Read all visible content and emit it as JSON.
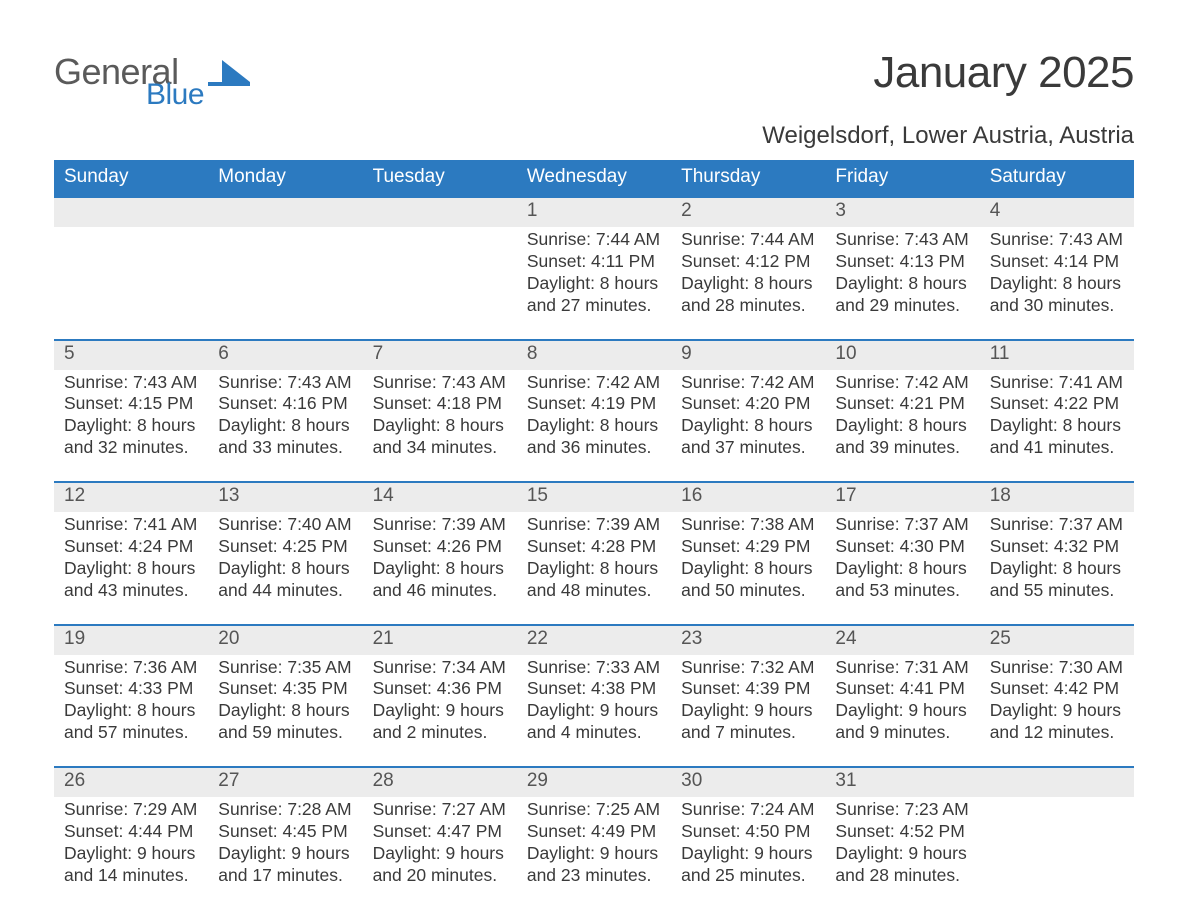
{
  "brand": {
    "line1": "General",
    "line2": "Blue"
  },
  "colors": {
    "header_blue": "#2c7ac0",
    "accent_blue": "#2c7ac0",
    "date_row_bg": "#ececec",
    "text_dark": "#3a3a3a",
    "logo_gray": "#5a5a5a"
  },
  "title": "January 2025",
  "location": "Weigelsdorf, Lower Austria, Austria",
  "weekdays": [
    "Sunday",
    "Monday",
    "Tuesday",
    "Wednesday",
    "Thursday",
    "Friday",
    "Saturday"
  ],
  "weeks": [
    {
      "days": [
        {
          "date": "",
          "sunrise": "",
          "sunset": "",
          "daylight": ""
        },
        {
          "date": "",
          "sunrise": "",
          "sunset": "",
          "daylight": ""
        },
        {
          "date": "",
          "sunrise": "",
          "sunset": "",
          "daylight": ""
        },
        {
          "date": "1",
          "sunrise": "Sunrise: 7:44 AM",
          "sunset": "Sunset: 4:11 PM",
          "daylight": "Daylight: 8 hours and 27 minutes."
        },
        {
          "date": "2",
          "sunrise": "Sunrise: 7:44 AM",
          "sunset": "Sunset: 4:12 PM",
          "daylight": "Daylight: 8 hours and 28 minutes."
        },
        {
          "date": "3",
          "sunrise": "Sunrise: 7:43 AM",
          "sunset": "Sunset: 4:13 PM",
          "daylight": "Daylight: 8 hours and 29 minutes."
        },
        {
          "date": "4",
          "sunrise": "Sunrise: 7:43 AM",
          "sunset": "Sunset: 4:14 PM",
          "daylight": "Daylight: 8 hours and 30 minutes."
        }
      ]
    },
    {
      "days": [
        {
          "date": "5",
          "sunrise": "Sunrise: 7:43 AM",
          "sunset": "Sunset: 4:15 PM",
          "daylight": "Daylight: 8 hours and 32 minutes."
        },
        {
          "date": "6",
          "sunrise": "Sunrise: 7:43 AM",
          "sunset": "Sunset: 4:16 PM",
          "daylight": "Daylight: 8 hours and 33 minutes."
        },
        {
          "date": "7",
          "sunrise": "Sunrise: 7:43 AM",
          "sunset": "Sunset: 4:18 PM",
          "daylight": "Daylight: 8 hours and 34 minutes."
        },
        {
          "date": "8",
          "sunrise": "Sunrise: 7:42 AM",
          "sunset": "Sunset: 4:19 PM",
          "daylight": "Daylight: 8 hours and 36 minutes."
        },
        {
          "date": "9",
          "sunrise": "Sunrise: 7:42 AM",
          "sunset": "Sunset: 4:20 PM",
          "daylight": "Daylight: 8 hours and 37 minutes."
        },
        {
          "date": "10",
          "sunrise": "Sunrise: 7:42 AM",
          "sunset": "Sunset: 4:21 PM",
          "daylight": "Daylight: 8 hours and 39 minutes."
        },
        {
          "date": "11",
          "sunrise": "Sunrise: 7:41 AM",
          "sunset": "Sunset: 4:22 PM",
          "daylight": "Daylight: 8 hours and 41 minutes."
        }
      ]
    },
    {
      "days": [
        {
          "date": "12",
          "sunrise": "Sunrise: 7:41 AM",
          "sunset": "Sunset: 4:24 PM",
          "daylight": "Daylight: 8 hours and 43 minutes."
        },
        {
          "date": "13",
          "sunrise": "Sunrise: 7:40 AM",
          "sunset": "Sunset: 4:25 PM",
          "daylight": "Daylight: 8 hours and 44 minutes."
        },
        {
          "date": "14",
          "sunrise": "Sunrise: 7:39 AM",
          "sunset": "Sunset: 4:26 PM",
          "daylight": "Daylight: 8 hours and 46 minutes."
        },
        {
          "date": "15",
          "sunrise": "Sunrise: 7:39 AM",
          "sunset": "Sunset: 4:28 PM",
          "daylight": "Daylight: 8 hours and 48 minutes."
        },
        {
          "date": "16",
          "sunrise": "Sunrise: 7:38 AM",
          "sunset": "Sunset: 4:29 PM",
          "daylight": "Daylight: 8 hours and 50 minutes."
        },
        {
          "date": "17",
          "sunrise": "Sunrise: 7:37 AM",
          "sunset": "Sunset: 4:30 PM",
          "daylight": "Daylight: 8 hours and 53 minutes."
        },
        {
          "date": "18",
          "sunrise": "Sunrise: 7:37 AM",
          "sunset": "Sunset: 4:32 PM",
          "daylight": "Daylight: 8 hours and 55 minutes."
        }
      ]
    },
    {
      "days": [
        {
          "date": "19",
          "sunrise": "Sunrise: 7:36 AM",
          "sunset": "Sunset: 4:33 PM",
          "daylight": "Daylight: 8 hours and 57 minutes."
        },
        {
          "date": "20",
          "sunrise": "Sunrise: 7:35 AM",
          "sunset": "Sunset: 4:35 PM",
          "daylight": "Daylight: 8 hours and 59 minutes."
        },
        {
          "date": "21",
          "sunrise": "Sunrise: 7:34 AM",
          "sunset": "Sunset: 4:36 PM",
          "daylight": "Daylight: 9 hours and 2 minutes."
        },
        {
          "date": "22",
          "sunrise": "Sunrise: 7:33 AM",
          "sunset": "Sunset: 4:38 PM",
          "daylight": "Daylight: 9 hours and 4 minutes."
        },
        {
          "date": "23",
          "sunrise": "Sunrise: 7:32 AM",
          "sunset": "Sunset: 4:39 PM",
          "daylight": "Daylight: 9 hours and 7 minutes."
        },
        {
          "date": "24",
          "sunrise": "Sunrise: 7:31 AM",
          "sunset": "Sunset: 4:41 PM",
          "daylight": "Daylight: 9 hours and 9 minutes."
        },
        {
          "date": "25",
          "sunrise": "Sunrise: 7:30 AM",
          "sunset": "Sunset: 4:42 PM",
          "daylight": "Daylight: 9 hours and 12 minutes."
        }
      ]
    },
    {
      "days": [
        {
          "date": "26",
          "sunrise": "Sunrise: 7:29 AM",
          "sunset": "Sunset: 4:44 PM",
          "daylight": "Daylight: 9 hours and 14 minutes."
        },
        {
          "date": "27",
          "sunrise": "Sunrise: 7:28 AM",
          "sunset": "Sunset: 4:45 PM",
          "daylight": "Daylight: 9 hours and 17 minutes."
        },
        {
          "date": "28",
          "sunrise": "Sunrise: 7:27 AM",
          "sunset": "Sunset: 4:47 PM",
          "daylight": "Daylight: 9 hours and 20 minutes."
        },
        {
          "date": "29",
          "sunrise": "Sunrise: 7:25 AM",
          "sunset": "Sunset: 4:49 PM",
          "daylight": "Daylight: 9 hours and 23 minutes."
        },
        {
          "date": "30",
          "sunrise": "Sunrise: 7:24 AM",
          "sunset": "Sunset: 4:50 PM",
          "daylight": "Daylight: 9 hours and 25 minutes."
        },
        {
          "date": "31",
          "sunrise": "Sunrise: 7:23 AM",
          "sunset": "Sunset: 4:52 PM",
          "daylight": "Daylight: 9 hours and 28 minutes."
        },
        {
          "date": "",
          "sunrise": "",
          "sunset": "",
          "daylight": ""
        }
      ]
    }
  ]
}
